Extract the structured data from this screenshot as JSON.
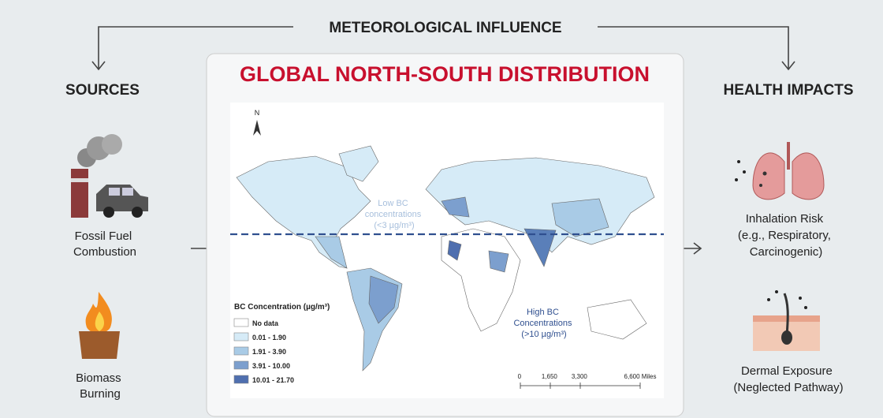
{
  "header": {
    "title": "METEOROLOGICAL INFLUENCE"
  },
  "sources": {
    "title": "SOURCES",
    "items": [
      {
        "label": [
          "Fossil Fuel",
          "Combustion"
        ]
      },
      {
        "label": [
          "Biomass",
          "Burning"
        ]
      }
    ]
  },
  "center": {
    "title": "GLOBAL NORTH-SOUTH DISTRIBUTION",
    "north": "N",
    "low_note": [
      "Low BC",
      "concentrations",
      "(<3 µg/m³)"
    ],
    "high_note": [
      "High BC",
      "Concentrations",
      "(>10 µg/m³)"
    ],
    "legend": {
      "title": "BC Concentration (µg/m³)",
      "entries": [
        {
          "label": "No data",
          "color": "#ffffff"
        },
        {
          "label": "0.01 - 1.90",
          "color": "#d6ebf7"
        },
        {
          "label": "1.91 - 3.90",
          "color": "#a9cbe6"
        },
        {
          "label": "3.91 - 10.00",
          "color": "#7c9fce"
        },
        {
          "label": "10.01 - 21.70",
          "color": "#4f6faf"
        }
      ]
    },
    "scale": [
      "0",
      "1,650",
      "3,300",
      "6,600 Miles"
    ]
  },
  "impacts": {
    "title": "HEALTH IMPACTS",
    "items": [
      {
        "label": [
          "Inhalation Risk",
          "(e.g., Respiratory,",
          "Carcinogenic)"
        ]
      },
      {
        "label": [
          "Dermal Exposure",
          "(Neglected Pathway)"
        ]
      }
    ]
  }
}
